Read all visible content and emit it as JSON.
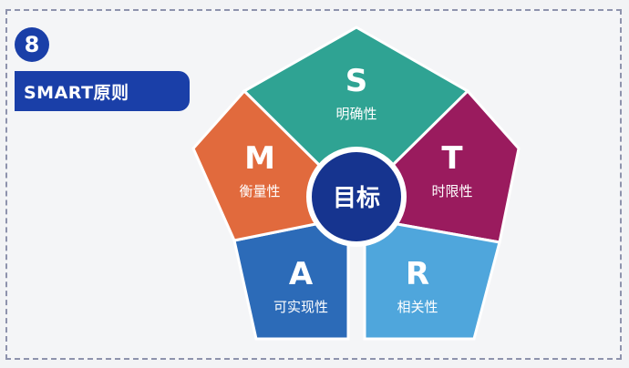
{
  "badge_number": "8",
  "title": "SMART原则",
  "center": {
    "label": "目标",
    "color": "#16348f"
  },
  "segments": [
    {
      "key": "s",
      "letter": "S",
      "label": "明确性",
      "color": "#2fa393"
    },
    {
      "key": "t",
      "letter": "T",
      "label": "时限性",
      "color": "#9a1b5e"
    },
    {
      "key": "r",
      "letter": "R",
      "label": "相关性",
      "color": "#4fa6dc"
    },
    {
      "key": "a",
      "letter": "A",
      "label": "可实现性",
      "color": "#2c6bb8"
    },
    {
      "key": "m",
      "letter": "M",
      "label": "衡量性",
      "color": "#e16a3d"
    }
  ]
}
